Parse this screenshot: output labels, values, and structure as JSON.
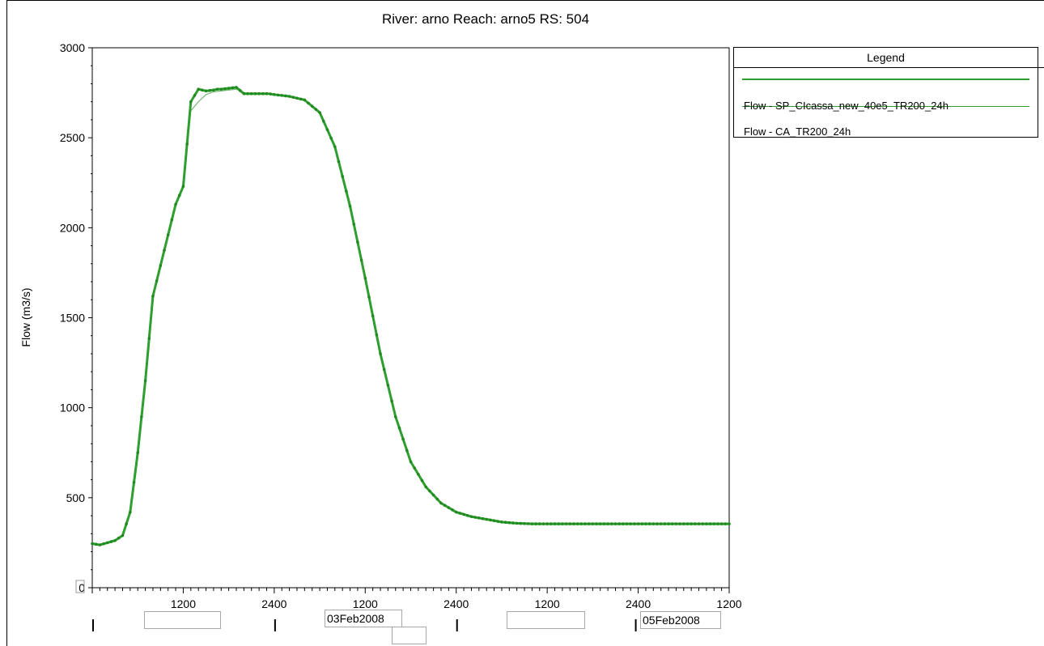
{
  "chart_data": {
    "type": "line",
    "title": "River: arno Reach: arno5 RS: 504",
    "xlabel": "",
    "ylabel": "Flow (m3/s)",
    "ylim": [
      0,
      3000
    ],
    "yticks": [
      0,
      500,
      1000,
      1500,
      2000,
      2500,
      3000
    ],
    "xlim_hours": [
      0,
      84
    ],
    "x_tick_labels": [
      "1200",
      "2400",
      "1200",
      "2400",
      "1200",
      "2400",
      "1200"
    ],
    "x_date_labels": [
      "03Feb2008",
      "05Feb2008"
    ],
    "legend": {
      "title": "Legend",
      "entries": [
        "Flow - SP_CIcassa_new_40e5_TR200_24h",
        "Flow - CA_TR200_24h"
      ],
      "placement": "right"
    },
    "series": [
      {
        "name": "Flow - SP_CIcassa_new_40e5_TR200_24h",
        "color": "#2e9e2e",
        "x_hours": [
          0,
          1,
          2,
          3,
          4,
          5,
          6,
          7,
          8,
          9,
          10,
          11,
          12,
          13,
          14,
          15,
          16,
          16.5,
          17,
          18,
          19,
          20,
          21,
          22,
          23,
          23.2,
          24,
          26,
          28,
          30,
          32,
          34,
          36,
          38,
          40,
          42,
          44,
          46,
          48,
          50,
          52,
          54,
          56,
          58,
          60,
          62,
          64,
          66,
          68,
          70,
          72,
          75,
          78,
          81,
          84
        ],
        "values": [
          245,
          238,
          250,
          262,
          290,
          420,
          750,
          1150,
          1620,
          1790,
          1960,
          2130,
          2230,
          2700,
          2770,
          2760,
          2765,
          2770,
          2770,
          2775,
          2780,
          2745,
          2745,
          2745,
          2745,
          2745,
          2740,
          2730,
          2710,
          2640,
          2450,
          2120,
          1720,
          1300,
          950,
          700,
          560,
          470,
          420,
          395,
          380,
          365,
          358,
          355,
          355,
          355,
          355,
          355,
          355,
          355,
          355,
          355,
          355,
          355,
          355
        ]
      },
      {
        "name": "Flow - CA_TR200_24h",
        "color": "#7ab87a",
        "x_hours": [
          0,
          1,
          2,
          3,
          4,
          5,
          6,
          7,
          8,
          9,
          10,
          11,
          12,
          13,
          14,
          15,
          16,
          17,
          18,
          19,
          20,
          21,
          22,
          24,
          26,
          28,
          30,
          32,
          34,
          36,
          38,
          40,
          42,
          44,
          46,
          48,
          50,
          52,
          54,
          56,
          58,
          60,
          62,
          64,
          66,
          68,
          70,
          72,
          75,
          78,
          81,
          84
        ],
        "values": [
          245,
          238,
          250,
          262,
          290,
          420,
          750,
          1150,
          1620,
          1790,
          1960,
          2130,
          2230,
          2650,
          2700,
          2740,
          2755,
          2760,
          2765,
          2770,
          2750,
          2745,
          2745,
          2740,
          2730,
          2710,
          2640,
          2450,
          2120,
          1720,
          1300,
          950,
          700,
          560,
          470,
          420,
          395,
          380,
          365,
          358,
          355,
          355,
          355,
          355,
          355,
          355,
          355,
          355,
          355,
          355,
          355,
          355
        ]
      }
    ]
  }
}
